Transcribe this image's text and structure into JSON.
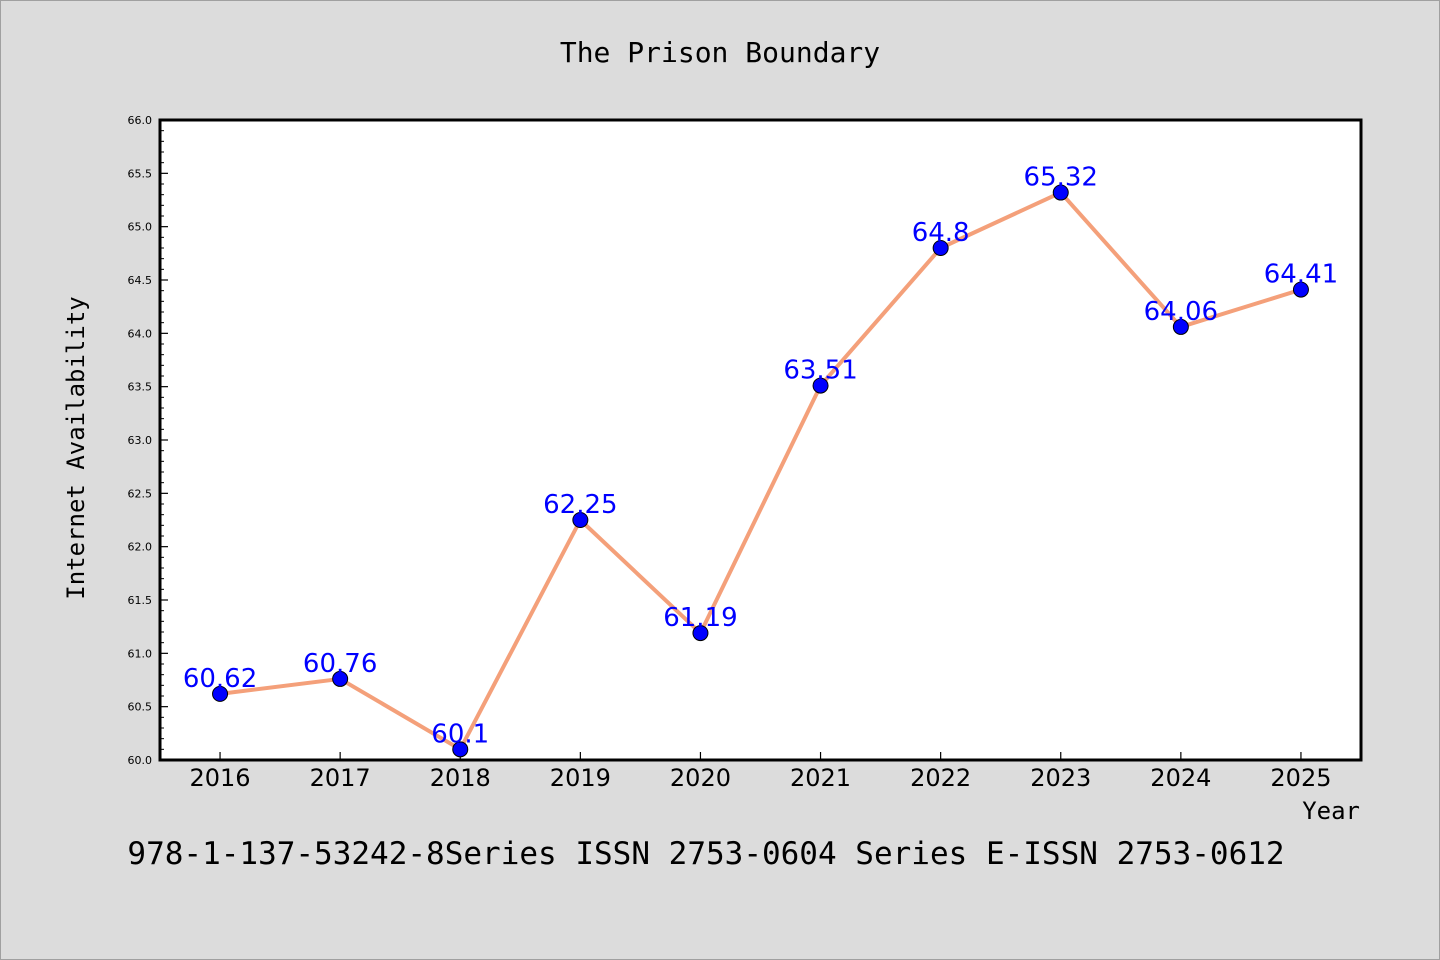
{
  "colors": {
    "background": "#dcdcdc",
    "plot_background": "#ffffff",
    "line": "#f4a07a",
    "marker": "#0000ff",
    "label": "#0000ff"
  },
  "footer": "978-1-137-53242-8Series ISSN 2753-0604 Series E-ISSN 2753-0612",
  "chart_data": {
    "type": "line",
    "title": "The Prison Boundary",
    "xlabel": "Year",
    "ylabel": "Internet Availability",
    "categories": [
      "2016",
      "2017",
      "2018",
      "2019",
      "2020",
      "2021",
      "2022",
      "2023",
      "2024",
      "2025"
    ],
    "series": [
      {
        "values": [
          60.62,
          60.76,
          60.1,
          62.25,
          61.19,
          63.51,
          64.8,
          65.32,
          64.06,
          64.41
        ],
        "labels": [
          "60.62",
          "60.76",
          "60.1",
          "62.25",
          "61.19",
          "63.51",
          "64.8",
          "65.32",
          "64.06",
          "64.41"
        ]
      }
    ],
    "ylim": [
      60.0,
      66.0
    ],
    "yticks": [
      "60.0",
      "60.5",
      "61.0",
      "61.5",
      "62.0",
      "62.5",
      "63.0",
      "63.5",
      "64.0",
      "64.5",
      "65.0",
      "65.5",
      "66.0"
    ],
    "grid": false,
    "legend": "none"
  }
}
